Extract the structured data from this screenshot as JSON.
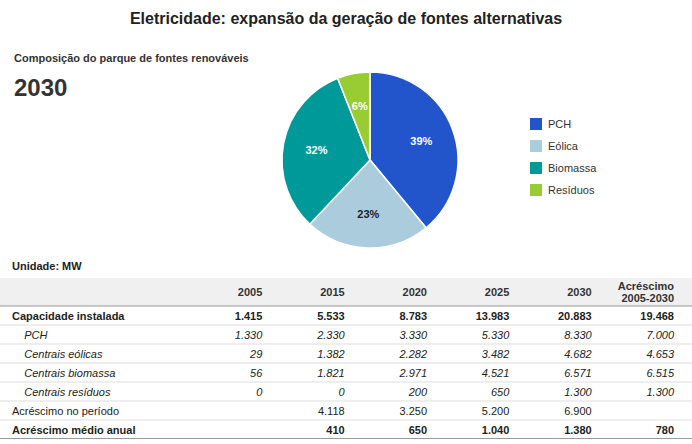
{
  "chart_data": [
    {
      "type": "pie",
      "title": "Eletricidade: expansão da geração de fontes alternativas",
      "subtitle": "Composição do parque de fontes renováveis",
      "annotations": [
        {
          "text": "2030"
        }
      ],
      "categories": [
        "PCH",
        "Eólica",
        "Biomassa",
        "Resíduos"
      ],
      "values": [
        39,
        23,
        32,
        6
      ],
      "value_labels": [
        "39%",
        "23%",
        "32%",
        "6%"
      ],
      "colors": [
        "#2255CC",
        "#AACCDD",
        "#009999",
        "#99CC33"
      ],
      "data_labels": true,
      "legend": "right"
    },
    {
      "type": "table",
      "title": "Unidade: MW",
      "categories": [
        "Capacidade instalada",
        "    PCH",
        "    Centrais eólicas",
        "    Centrais biomassa",
        "    Centrais resíduos",
        "Acréscimo no período",
        "Acréscimo médio anual"
      ],
      "series": [
        {
          "name": "2005",
          "values": [
            1415,
            1330,
            29,
            56,
            0,
            null,
            null
          ],
          "value_labels": [
            "1.415",
            "1.330",
            "29",
            "56",
            "0",
            null,
            null
          ]
        },
        {
          "name": "2015",
          "values": [
            5533,
            2330,
            1382,
            1821,
            0,
            4118,
            410
          ],
          "value_labels": [
            "5.533",
            "2.330",
            "1.382",
            "1.821",
            "0",
            "4.118",
            "410"
          ]
        },
        {
          "name": "2020",
          "values": [
            8783,
            3330,
            2282,
            2971,
            200,
            3250,
            650
          ],
          "value_labels": [
            "8.783",
            "3.330",
            "2.282",
            "2.971",
            "200",
            "3.250",
            "650"
          ]
        },
        {
          "name": "2025",
          "values": [
            13983,
            5330,
            3482,
            4521,
            650,
            5200,
            1040
          ],
          "value_labels": [
            "13.983",
            "5.330",
            "3.482",
            "4.521",
            "650",
            "5.200",
            "1.040"
          ]
        },
        {
          "name": "2030",
          "values": [
            20883,
            8330,
            4682,
            6571,
            1300,
            6900,
            1380
          ],
          "value_labels": [
            "20.883",
            "8.330",
            "4.682",
            "6.571",
            "1.300",
            "6.900",
            "1.380"
          ]
        },
        {
          "name": "Acréscimo\n2005-2030",
          "values": [
            19468,
            7000,
            4653,
            6515,
            1300,
            null,
            780
          ],
          "value_labels": [
            "19.468",
            "7.000",
            "4.653",
            "6.515",
            "1.300",
            null,
            "780"
          ]
        }
      ]
    }
  ]
}
